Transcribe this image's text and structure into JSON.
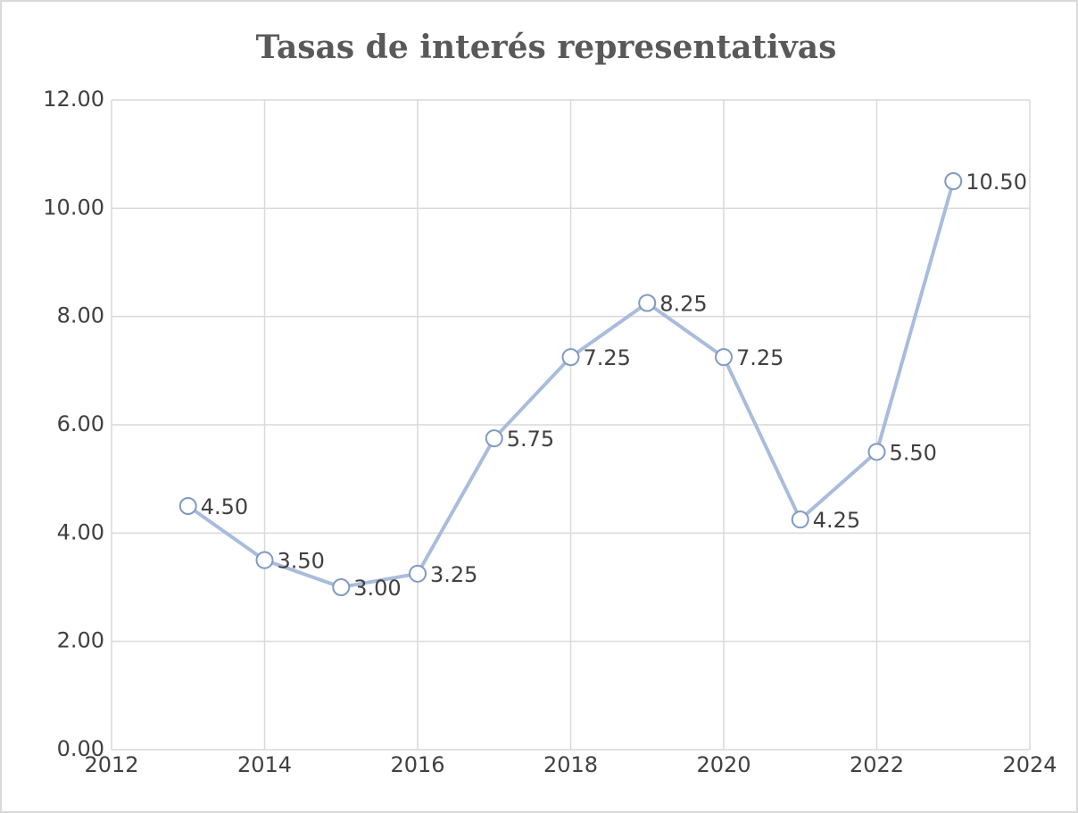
{
  "chart_data": {
    "type": "line",
    "title": "Tasas de interés representativas",
    "x": [
      2013,
      2014,
      2015,
      2016,
      2017,
      2018,
      2019,
      2020,
      2021,
      2022,
      2023
    ],
    "series": [
      {
        "color": "#7f9ac4",
        "values": [
          4.5,
          3.5,
          3.0,
          3.25,
          5.75,
          7.25,
          8.25,
          7.25,
          4.25,
          5.5,
          10.5
        ],
        "value_labels": [
          "4.50",
          "3.50",
          "3.00",
          "3.25",
          "5.75",
          "7.25",
          "8.25",
          "7.25",
          "4.25",
          "5.50",
          "10.50"
        ]
      }
    ],
    "xlim": [
      2012,
      2024
    ],
    "xticks": [
      2012,
      2014,
      2016,
      2018,
      2020,
      2022,
      2024
    ],
    "ylim": [
      0,
      12
    ],
    "yticks": [
      {
        "value": 0,
        "label": "0.00"
      },
      {
        "value": 2,
        "label": "2.00"
      },
      {
        "value": 4,
        "label": "4.00"
      },
      {
        "value": 6,
        "label": "6.00"
      },
      {
        "value": 8,
        "label": "8.00"
      },
      {
        "value": 10,
        "label": "10.00"
      },
      {
        "value": 12,
        "label": "12.00"
      }
    ],
    "grid": true
  }
}
